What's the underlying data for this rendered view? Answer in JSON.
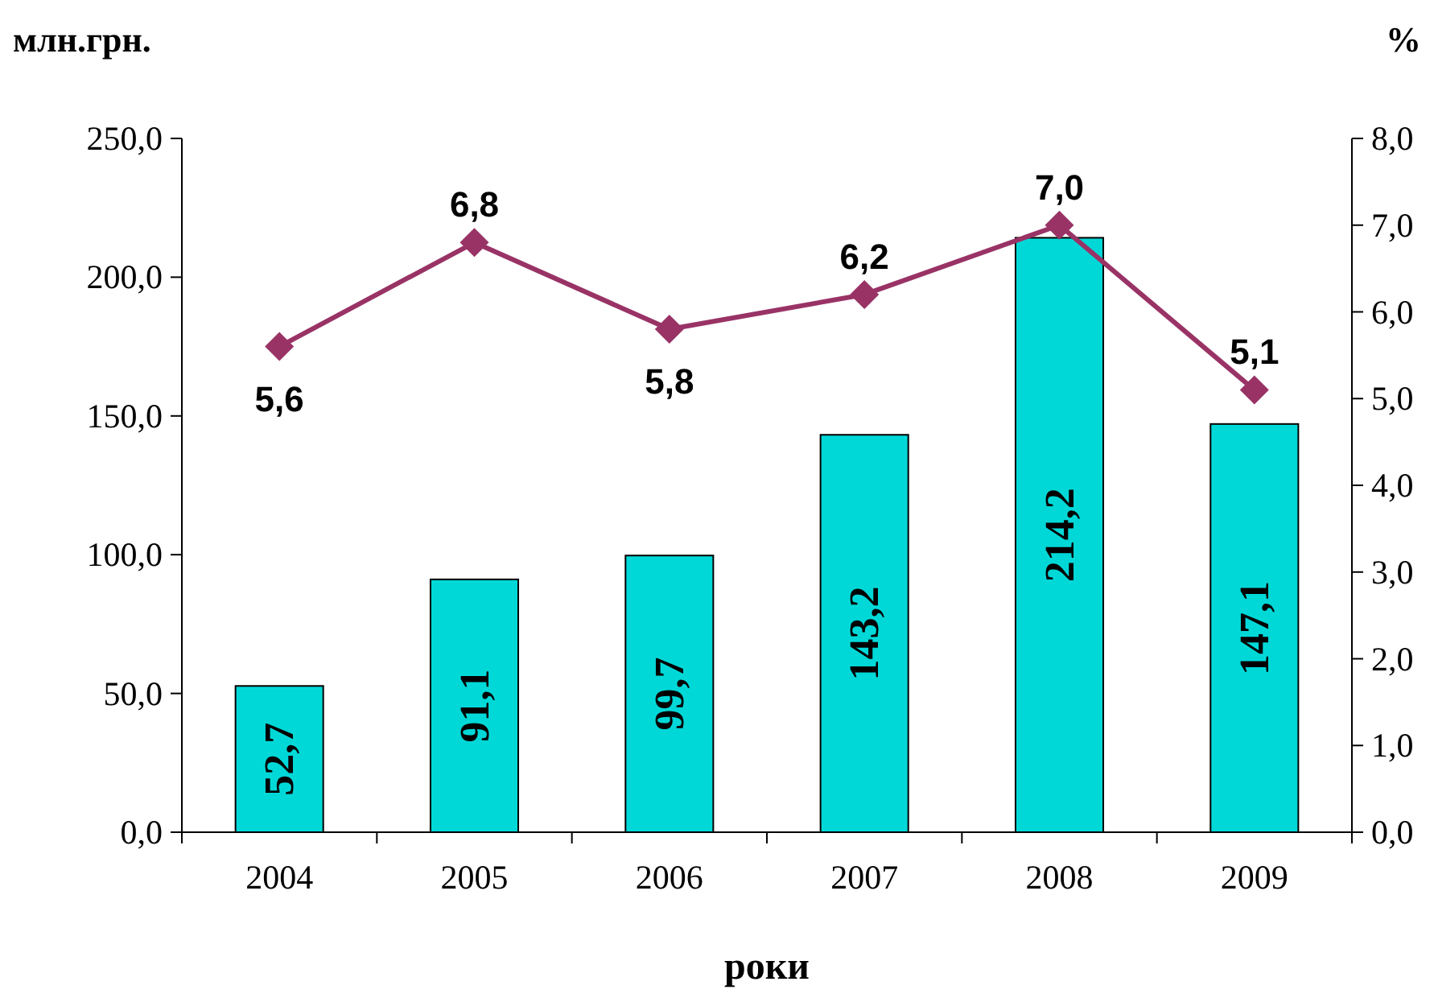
{
  "chart_data": {
    "type": "bar",
    "ylabel": "млн.грн.",
    "y2label": "%",
    "xlabel": "роки",
    "categories": [
      "2004",
      "2005",
      "2006",
      "2007",
      "2008",
      "2009"
    ],
    "series": [
      {
        "color": "#00d8d8",
        "values": [
          52.7,
          91.1,
          99.7,
          143.2,
          214.2,
          147.1
        ],
        "value_labels": [
          "52,7",
          "91,1",
          "99,7",
          "143,2",
          "214,2",
          "147,1"
        ]
      },
      {
        "type": "line",
        "axis": "y2",
        "color": "#993366",
        "marker": "diamond",
        "values": [
          5.6,
          6.8,
          5.8,
          6.2,
          7.0,
          5.1
        ],
        "value_labels": [
          "5,6",
          "6,8",
          "5,8",
          "6,2",
          "7,0",
          "5,1"
        ]
      }
    ],
    "ylim": [
      0,
      250
    ],
    "yticks": [
      {
        "value": 0,
        "label": "0,0"
      },
      {
        "value": 50,
        "label": "50,0"
      },
      {
        "value": 100,
        "label": "100,0"
      },
      {
        "value": 150,
        "label": "150,0"
      },
      {
        "value": 200,
        "label": "200,0"
      },
      {
        "value": 250,
        "label": "250,0"
      }
    ],
    "y2lim": [
      0,
      8
    ],
    "y2ticks": [
      {
        "value": 0,
        "label": "0,0"
      },
      {
        "value": 1,
        "label": "1,0"
      },
      {
        "value": 2,
        "label": "2,0"
      },
      {
        "value": 3,
        "label": "3,0"
      },
      {
        "value": 4,
        "label": "4,0"
      },
      {
        "value": 5,
        "label": "5,0"
      },
      {
        "value": 6,
        "label": "6,0"
      },
      {
        "value": 7,
        "label": "7,0"
      },
      {
        "value": 8,
        "label": "8,0"
      }
    ],
    "grid": false
  }
}
